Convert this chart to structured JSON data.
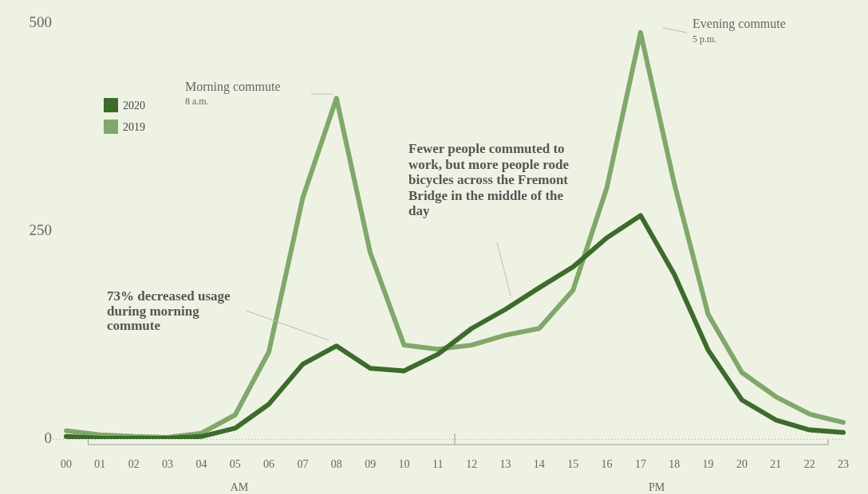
{
  "chart_data": {
    "type": "line",
    "categories": [
      "00",
      "01",
      "02",
      "03",
      "04",
      "05",
      "06",
      "07",
      "08",
      "09",
      "10",
      "11",
      "12",
      "13",
      "14",
      "15",
      "16",
      "17",
      "18",
      "19",
      "20",
      "21",
      "22",
      "23"
    ],
    "series": [
      {
        "name": "2020",
        "color": "#3d6b2c",
        "values": [
          3,
          1,
          1,
          1,
          3,
          13,
          42,
          90,
          112,
          85,
          82,
          102,
          133,
          156,
          182,
          207,
          242,
          269,
          198,
          107,
          47,
          23,
          11,
          8
        ]
      },
      {
        "name": "2019",
        "color": "#7fa86a",
        "values": [
          10,
          5,
          3,
          2,
          7,
          29,
          105,
          290,
          410,
          224,
          113,
          108,
          113,
          125,
          133,
          179,
          302,
          489,
          307,
          150,
          80,
          51,
          30,
          20
        ]
      }
    ],
    "ylim": [
      0,
      500
    ],
    "yticks": [
      0,
      250,
      500
    ],
    "grid": false,
    "legend": "top left",
    "marker": "none",
    "line_style": "solid",
    "annotations": [
      "Morning commute",
      "8 a.m.",
      "Evening commute",
      "5 p.m.",
      "Fewer people commuted to work, but more people rode bicycles across the Fremont Bridge in the middle of the day",
      "73% decreased usage during morning commute",
      "AM",
      "PM"
    ]
  }
}
